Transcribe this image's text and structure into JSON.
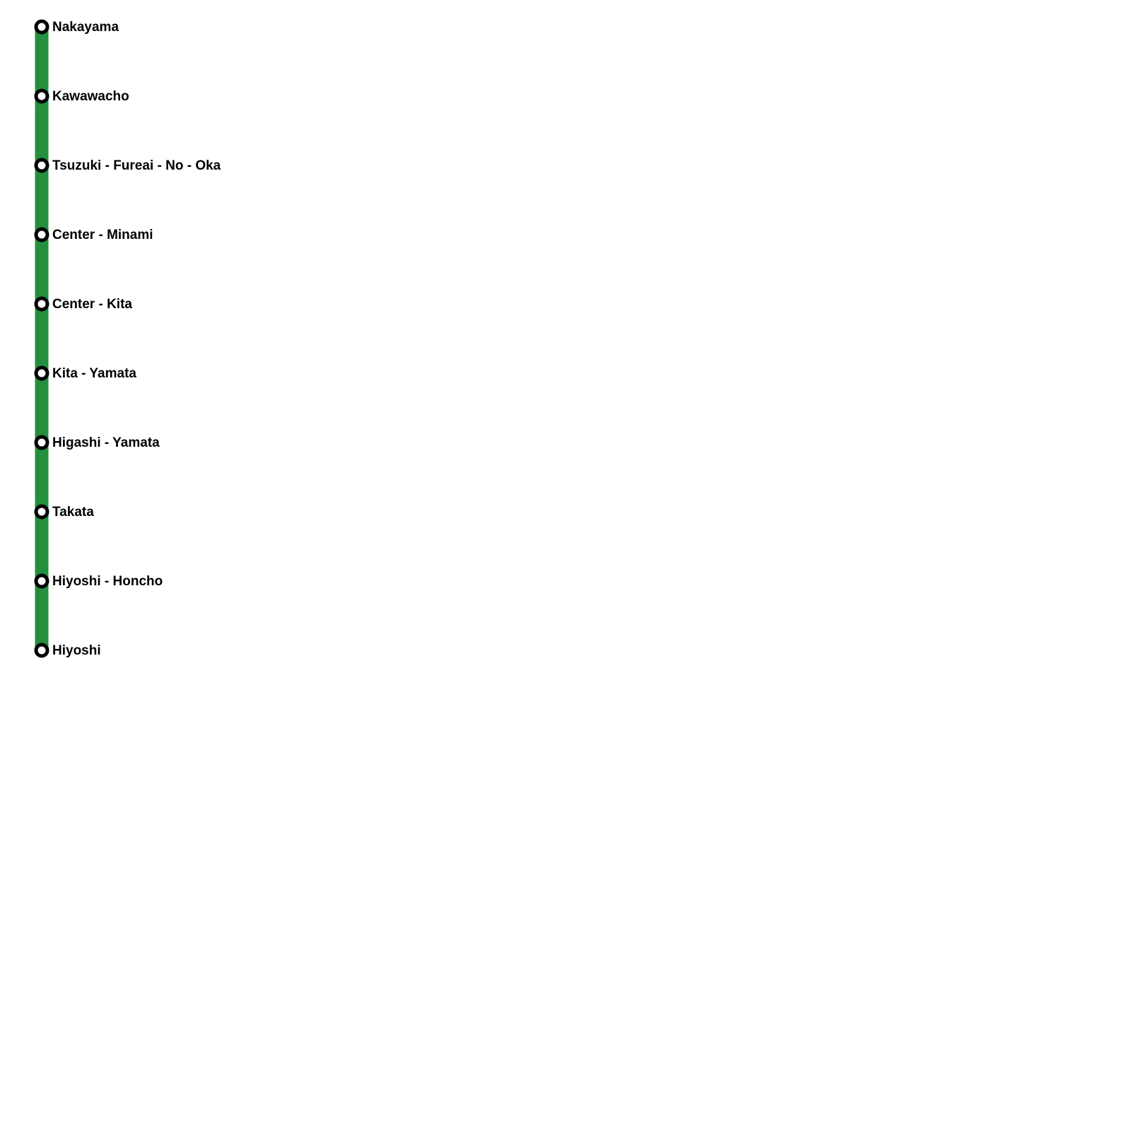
{
  "line": {
    "color": "#23903f"
  },
  "stations": [
    {
      "name": "Nakayama"
    },
    {
      "name": "Kawawacho"
    },
    {
      "name": "Tsuzuki - Fureai - No - Oka"
    },
    {
      "name": "Center - Minami"
    },
    {
      "name": "Center - Kita"
    },
    {
      "name": "Kita - Yamata"
    },
    {
      "name": "Higashi - Yamata"
    },
    {
      "name": "Takata"
    },
    {
      "name": "Hiyoshi - Honcho"
    },
    {
      "name": "Hiyoshi"
    }
  ]
}
